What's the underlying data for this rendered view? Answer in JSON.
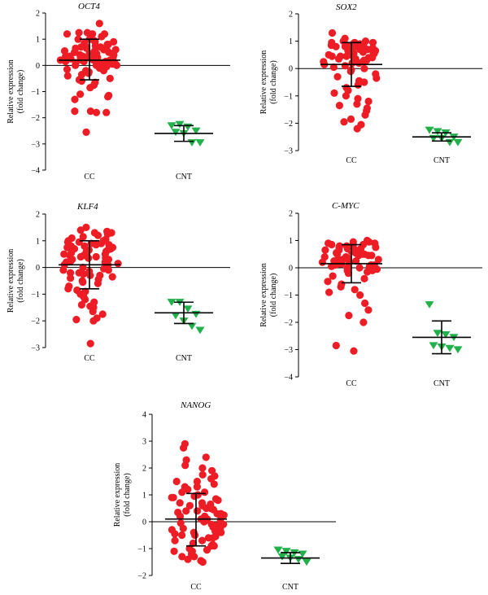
{
  "y_axis_label": [
    "Relative expression",
    "(fold change)"
  ],
  "colors": {
    "cc": "#ee1c24",
    "cnt": "#22b04b",
    "axis": "#000000"
  },
  "chart_data": [
    {
      "type": "scatter",
      "title": "OCT4",
      "categories": [
        "CC",
        "CNT"
      ],
      "ylim": [
        -4,
        2
      ],
      "yticks": [
        2,
        1,
        0,
        -1,
        -2,
        -3,
        -4
      ],
      "series": [
        {
          "values": [
            1.6,
            1.2,
            1.25,
            1.25,
            1.2,
            1.1,
            1.0,
            1.05,
            1.15,
            1.2,
            0.95,
            0.9,
            0.85,
            0.8,
            0.7,
            0.75,
            0.65,
            0.6,
            0.7,
            0.8,
            0.5,
            0.55,
            0.45,
            0.4,
            0.5,
            0.6,
            0.35,
            0.3,
            0.25,
            0.3,
            0.4,
            0.2,
            0.15,
            0.2,
            0.25,
            0.1,
            0.05,
            0.0,
            0.1,
            0.15,
            0.2,
            0.3,
            0.35,
            0.45,
            -0.05,
            -0.1,
            -0.15,
            -0.2,
            0.0,
            0.05,
            -0.3,
            -0.35,
            -0.25,
            -0.4,
            -0.5,
            -0.55,
            -0.6,
            -0.65,
            -0.75,
            -0.85,
            -1.1,
            -1.2,
            -1.15,
            -1.3,
            -1.8,
            -1.75,
            -1.8,
            -1.75,
            -2.55,
            0.55,
            0.65,
            0.3,
            0.2,
            0.1,
            0.4,
            0.5,
            0.6,
            0.9,
            1.0,
            0.15,
            0.25,
            0.35,
            -0.1,
            -0.2,
            0.0,
            0.75
          ]
        },
        {
          "values": [
            -2.3,
            -2.25,
            -2.35,
            -2.5,
            -2.55,
            -2.6,
            -2.95,
            -2.95
          ]
        }
      ],
      "summary": [
        {
          "mean": 0.2,
          "sd_low": -0.55,
          "sd_high": 1.0
        },
        {
          "mean": -2.6,
          "sd_low": -2.9,
          "sd_high": -2.3
        }
      ]
    },
    {
      "type": "scatter",
      "title": "SOX2",
      "categories": [
        "CC",
        "CNT"
      ],
      "ylim": [
        -3,
        2
      ],
      "yticks": [
        2,
        1,
        0,
        -1,
        -2,
        -3
      ],
      "series": [
        {
          "values": [
            1.3,
            1.1,
            1.0,
            0.95,
            0.9,
            0.85,
            0.95,
            0.9,
            0.85,
            0.8,
            0.75,
            0.7,
            0.8,
            0.9,
            0.7,
            0.65,
            0.6,
            0.55,
            0.5,
            0.6,
            0.75,
            0.85,
            0.5,
            0.45,
            0.4,
            0.35,
            0.45,
            0.55,
            0.3,
            0.25,
            0.2,
            0.15,
            0.1,
            0.05,
            0.0,
            0.3,
            0.4,
            0.5,
            0.65,
            0.75,
            0.85,
            0.95,
            -0.05,
            -0.1,
            -0.2,
            -0.3,
            -0.35,
            -0.45,
            -0.5,
            -0.6,
            -0.7,
            -0.8,
            -0.9,
            -1.0,
            -1.1,
            -1.2,
            -1.3,
            -1.35,
            -1.45,
            -1.55,
            -1.7,
            -1.85,
            -1.95,
            -2.05,
            -2.2,
            0.2,
            0.35,
            0.6,
            0.7,
            0.8,
            0.9,
            1.0,
            0.55,
            0.45
          ]
        },
        {
          "values": [
            -2.25,
            -2.3,
            -2.35,
            -2.5,
            -2.55,
            -2.55,
            -2.7,
            -2.7
          ]
        }
      ],
      "summary": [
        {
          "mean": 0.15,
          "sd_low": -0.65,
          "sd_high": 0.95
        },
        {
          "mean": -2.5,
          "sd_low": -2.65,
          "sd_high": -2.35
        }
      ]
    },
    {
      "type": "scatter",
      "title": "KLF4",
      "categories": [
        "CC",
        "CNT"
      ],
      "ylim": [
        -3,
        2
      ],
      "yticks": [
        2,
        1,
        0,
        -1,
        -2,
        -3
      ],
      "series": [
        {
          "values": [
            1.5,
            1.4,
            1.35,
            1.3,
            1.25,
            1.2,
            1.1,
            1.05,
            1.0,
            0.95,
            0.9,
            0.85,
            0.8,
            0.75,
            0.7,
            0.65,
            0.6,
            0.55,
            0.5,
            0.45,
            0.4,
            0.35,
            0.3,
            0.25,
            0.2,
            0.15,
            0.1,
            0.05,
            0.0,
            -0.05,
            -0.1,
            -0.15,
            -0.2,
            -0.25,
            -0.3,
            -0.35,
            -0.4,
            -0.45,
            -0.5,
            -0.55,
            -0.6,
            -0.7,
            -0.8,
            -0.85,
            -0.9,
            -1.0,
            -1.1,
            -1.2,
            -1.3,
            -1.4,
            -1.45,
            -1.5,
            -1.65,
            -1.75,
            -1.9,
            -1.95,
            -2.0,
            -2.85,
            1.3,
            1.15,
            0.95,
            0.85,
            0.75,
            0.65,
            0.5,
            0.4,
            0.3,
            0.2,
            0.1,
            -0.1,
            -0.2,
            -0.3,
            0.6,
            0.7,
            0.8,
            0.9,
            1.0,
            0.45,
            0.35
          ]
        },
        {
          "values": [
            -1.3,
            -1.3,
            -1.55,
            -1.75,
            -1.8,
            -2.0,
            -2.2,
            -2.35
          ]
        }
      ],
      "summary": [
        {
          "mean": 0.1,
          "sd_low": -0.8,
          "sd_high": 1.0
        },
        {
          "mean": -1.7,
          "sd_low": -2.1,
          "sd_high": -1.3
        }
      ]
    },
    {
      "type": "scatter",
      "title": "C-MYC",
      "categories": [
        "CC",
        "CNT"
      ],
      "ylim": [
        -4,
        2
      ],
      "yticks": [
        2,
        1,
        0,
        -1,
        -2,
        -3,
        -4
      ],
      "series": [
        {
          "values": [
            1.0,
            0.95,
            0.9,
            0.85,
            0.8,
            0.75,
            0.7,
            0.65,
            0.6,
            0.55,
            0.5,
            0.45,
            0.4,
            0.35,
            0.3,
            0.25,
            0.2,
            0.15,
            0.1,
            0.05,
            0.0,
            -0.05,
            -0.1,
            -0.15,
            -0.2,
            0.9,
            0.8,
            0.7,
            0.6,
            0.5,
            0.4,
            0.3,
            0.2,
            0.1,
            0.0,
            0.85,
            0.75,
            0.65,
            0.55,
            0.45,
            0.35,
            0.25,
            0.15,
            0.05,
            -0.1,
            0.7,
            0.5,
            0.3,
            0.1,
            -0.3,
            -0.4,
            -0.5,
            -0.6,
            -0.7,
            -0.8,
            -0.9,
            -1.0,
            -1.3,
            -1.55,
            -1.75,
            -2.0,
            -2.85,
            -3.05,
            0.95,
            0.85,
            0.65,
            0.45,
            0.25,
            0.05
          ]
        },
        {
          "values": [
            -1.35,
            -2.4,
            -2.45,
            -2.55,
            -2.85,
            -2.9,
            -2.95,
            -3.0
          ]
        }
      ],
      "summary": [
        {
          "mean": 0.15,
          "sd_low": -0.55,
          "sd_high": 0.85
        },
        {
          "mean": -2.55,
          "sd_low": -3.15,
          "sd_high": -1.95
        }
      ]
    },
    {
      "type": "scatter",
      "title": "NANOG",
      "categories": [
        "CC",
        "CNT"
      ],
      "ylim": [
        -2,
        4
      ],
      "yticks": [
        4,
        3,
        2,
        1,
        0,
        -1,
        -2
      ],
      "series": [
        {
          "values": [
            2.9,
            2.75,
            2.4,
            2.3,
            2.1,
            2.0,
            1.9,
            1.75,
            1.7,
            1.6,
            1.5,
            1.4,
            1.3,
            1.2,
            1.1,
            1.0,
            0.95,
            0.9,
            0.85,
            0.8,
            0.7,
            0.65,
            0.6,
            0.5,
            0.45,
            0.4,
            0.35,
            0.3,
            0.25,
            0.2,
            0.15,
            0.1,
            0.05,
            0.0,
            -0.05,
            -0.1,
            -0.15,
            -0.2,
            -0.25,
            -0.3,
            -0.35,
            -0.4,
            -0.45,
            -0.5,
            -0.55,
            -0.6,
            -0.7,
            -0.8,
            -0.85,
            -0.9,
            -1.0,
            -1.05,
            -1.1,
            -1.2,
            -1.3,
            -1.4,
            -1.45,
            -1.5,
            1.5,
            1.3,
            1.1,
            0.9,
            0.7,
            0.5,
            0.3,
            0.1,
            -0.1,
            -0.3,
            -0.5,
            -0.7,
            -0.9,
            -1.1,
            -1.3,
            0.6,
            0.4,
            0.2,
            0.0,
            -0.2,
            -0.4,
            -0.6
          ]
        },
        {
          "values": [
            -1.05,
            -1.1,
            -1.15,
            -1.2,
            -1.3,
            -1.35,
            -1.4,
            -1.5
          ]
        }
      ],
      "summary": [
        {
          "mean": 0.1,
          "sd_low": -0.9,
          "sd_high": 1.05
        },
        {
          "mean": -1.35,
          "sd_low": -1.55,
          "sd_high": -1.15
        }
      ]
    }
  ]
}
